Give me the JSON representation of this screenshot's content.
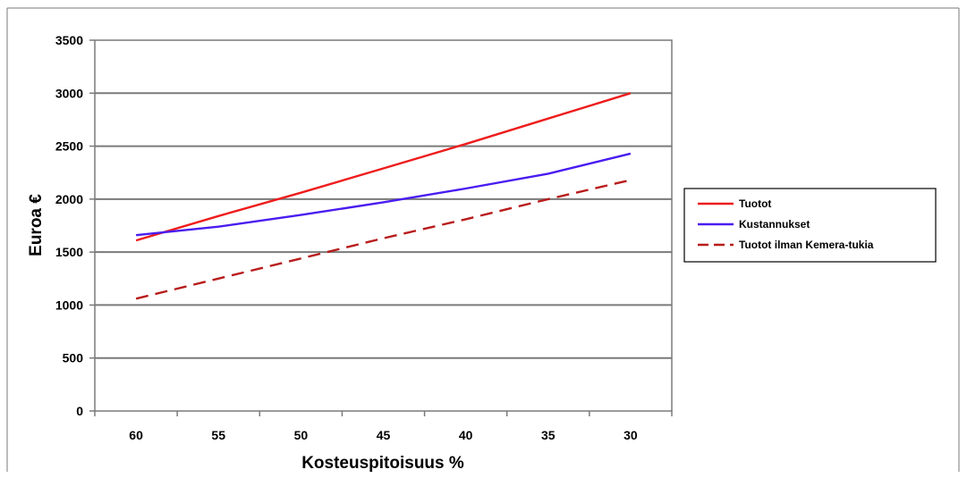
{
  "chart_data": {
    "type": "line",
    "title": "",
    "xlabel": "Kosteuspitoisuus %",
    "ylabel": "Euroa €",
    "categories": [
      "60",
      "55",
      "50",
      "45",
      "40",
      "35",
      "30"
    ],
    "x": [
      60,
      55,
      50,
      45,
      40,
      35,
      30
    ],
    "ylim": [
      0,
      3500
    ],
    "yticks": [
      0,
      500,
      1000,
      1500,
      2000,
      2500,
      3000,
      3500
    ],
    "grid": "horizontal",
    "legend_position": "right",
    "series": [
      {
        "name": "Tuotot",
        "values": [
          1610,
          1840,
          2060,
          2290,
          2520,
          2760,
          3000
        ],
        "color": "#ee1c1c",
        "dash": "solid"
      },
      {
        "name": "Kustannukset",
        "values": [
          1660,
          1740,
          1850,
          1970,
          2100,
          2240,
          2430
        ],
        "color": "#4a1cf0",
        "dash": "solid"
      },
      {
        "name": "Tuotot ilman Kemera-tukia",
        "values": [
          1060,
          1250,
          1440,
          1630,
          1810,
          2000,
          2180
        ],
        "color": "#b81c1c",
        "dash": "dashed"
      }
    ]
  }
}
